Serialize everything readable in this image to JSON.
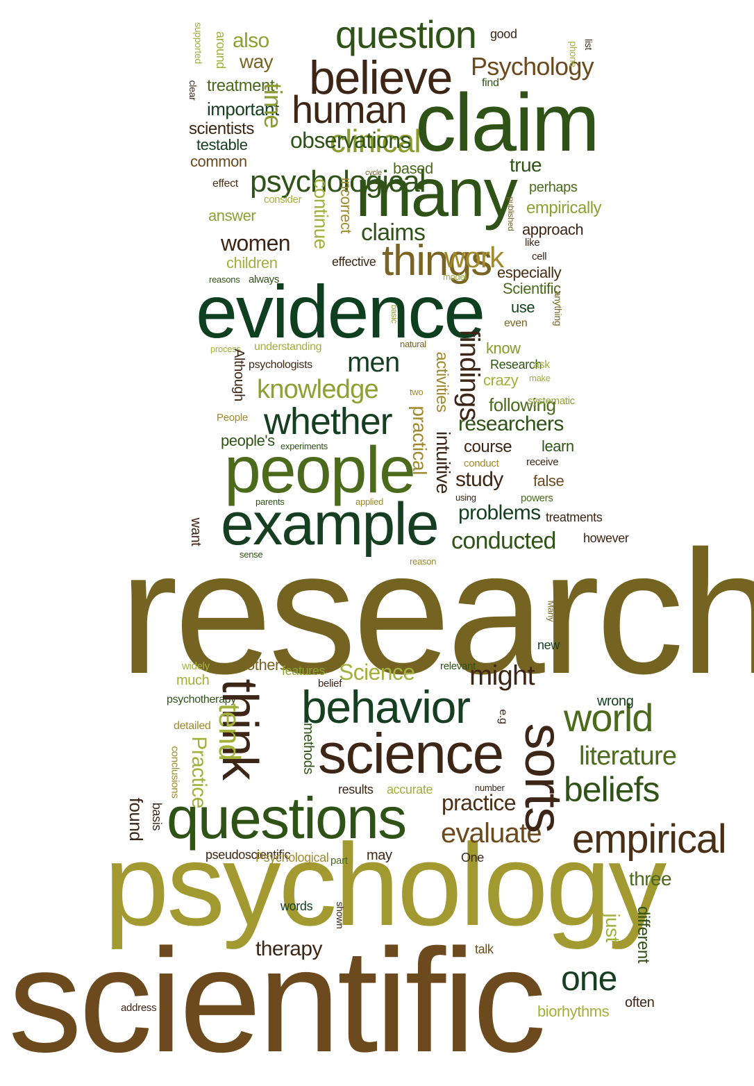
{
  "palette": {
    "dark_green": "#0f4020",
    "forest": "#2e5417",
    "olive": "#4f6a1c",
    "lime": "#8fa032",
    "mustard": "#a0922a",
    "gold": "#a8952e",
    "bronze": "#735f1f",
    "brown": "#6e4a1d",
    "dark_brown": "#3d2616"
  },
  "words": [
    {
      "text": "research",
      "color": "#746321"
    },
    {
      "text": "scientific",
      "color": "#6d4a1d"
    },
    {
      "text": "psychology",
      "color": "#a29a31"
    },
    {
      "text": "evidence",
      "color": "#0e4020"
    },
    {
      "text": "claim",
      "color": "#2f5316"
    },
    {
      "text": "many",
      "color": "#2f5316"
    },
    {
      "text": "people",
      "color": "#4b6a1c"
    },
    {
      "text": "example",
      "color": "#163f21"
    },
    {
      "text": "questions",
      "color": "#2f5316"
    },
    {
      "text": "science",
      "color": "#3d2616"
    },
    {
      "text": "believe",
      "color": "#3d2616"
    },
    {
      "text": "question",
      "color": "#2f5316"
    },
    {
      "text": "human",
      "color": "#3d2616"
    },
    {
      "text": "whether",
      "color": "#163f21"
    },
    {
      "text": "behavior",
      "color": "#163f21"
    },
    {
      "text": "world",
      "color": "#4b6a1c"
    },
    {
      "text": "beliefs",
      "color": "#2f5316"
    },
    {
      "text": "empirical",
      "color": "#4b2f14"
    },
    {
      "text": "one",
      "color": "#163f21"
    },
    {
      "text": "might",
      "color": "#3d2616"
    },
    {
      "text": "things",
      "color": "#7a6423"
    },
    {
      "text": "clinical",
      "color": "#8a9a2e"
    },
    {
      "text": "psychological",
      "color": "#2f5316"
    },
    {
      "text": "work",
      "color": "#a08a2d"
    },
    {
      "text": "claims",
      "color": "#2f5316"
    },
    {
      "text": "women",
      "color": "#3d2616"
    },
    {
      "text": "men",
      "color": "#163f21"
    },
    {
      "text": "knowledge",
      "color": "#8fa032"
    },
    {
      "text": "Psychology",
      "color": "#6d4a1d"
    },
    {
      "text": "also",
      "color": "#8fa032"
    },
    {
      "text": "way",
      "color": "#7a6423"
    },
    {
      "text": "conducted",
      "color": "#2f5316"
    },
    {
      "text": "evaluate",
      "color": "#6d4a1d"
    },
    {
      "text": "Science",
      "color": "#a2b03c"
    },
    {
      "text": "literature",
      "color": "#4b6a1c"
    },
    {
      "text": "practice",
      "color": "#4b2f14"
    },
    {
      "text": "researchers",
      "color": "#2f5316"
    },
    {
      "text": "study",
      "color": "#3d2616"
    },
    {
      "text": "problems",
      "color": "#163f21"
    },
    {
      "text": "true",
      "color": "#2f5316"
    },
    {
      "text": "therapy",
      "color": "#3d2616"
    },
    {
      "text": "three",
      "color": "#4b6a1c"
    },
    {
      "text": "observations",
      "color": "#2f5316"
    },
    {
      "text": "important",
      "color": "#163f21"
    },
    {
      "text": "treatment",
      "color": "#4b6a1c"
    },
    {
      "text": "scientists",
      "color": "#3d2616"
    },
    {
      "text": "testable",
      "color": "#163f21"
    },
    {
      "text": "common",
      "color": "#6d4a1d"
    },
    {
      "text": "answer",
      "color": "#8fa032"
    },
    {
      "text": "based",
      "color": "#4b6a1c"
    },
    {
      "text": "perhaps",
      "color": "#4b6a1c"
    },
    {
      "text": "empirically",
      "color": "#8fa032"
    },
    {
      "text": "approach",
      "color": "#3d2616"
    },
    {
      "text": "children",
      "color": "#a2b03c"
    },
    {
      "text": "especially",
      "color": "#4b2f14"
    },
    {
      "text": "Scientific",
      "color": "#4b6a1c"
    },
    {
      "text": "use",
      "color": "#163f21"
    },
    {
      "text": "know",
      "color": "#8a9a2e"
    },
    {
      "text": "crazy",
      "color": "#a2b03c"
    },
    {
      "text": "following",
      "color": "#4b6a1c"
    },
    {
      "text": "course",
      "color": "#3d2616"
    },
    {
      "text": "Research",
      "color": "#2f5316"
    },
    {
      "text": "understanding",
      "color": "#a2b03c"
    },
    {
      "text": "psychologists",
      "color": "#3d2616"
    },
    {
      "text": "people's",
      "color": "#2f5316"
    },
    {
      "text": "false",
      "color": "#6d4a1d"
    },
    {
      "text": "learn",
      "color": "#2f5316"
    },
    {
      "text": "treatments",
      "color": "#3d2616"
    },
    {
      "text": "however",
      "color": "#3d2616"
    },
    {
      "text": "others",
      "color": "#7a6423"
    },
    {
      "text": "much",
      "color": "#a2b03c"
    },
    {
      "text": "features",
      "color": "#8fa032"
    },
    {
      "text": "wrong",
      "color": "#163f21"
    },
    {
      "text": "new",
      "color": "#163f21"
    },
    {
      "text": "accurate",
      "color": "#a2b03c"
    },
    {
      "text": "results",
      "color": "#3d2616"
    },
    {
      "text": "pseudoscientific",
      "color": "#3d2616"
    },
    {
      "text": "Psychological",
      "color": "#a08a2d"
    },
    {
      "text": "may",
      "color": "#3d2616"
    },
    {
      "text": "One",
      "color": "#3d2616"
    },
    {
      "text": "words",
      "color": "#163f21"
    },
    {
      "text": "talk",
      "color": "#6d4a1d"
    },
    {
      "text": "biorhythms",
      "color": "#a2b03c"
    },
    {
      "text": "often",
      "color": "#3d2616"
    },
    {
      "text": "good",
      "color": "#3d2616"
    },
    {
      "text": "find",
      "color": "#2f5316"
    },
    {
      "text": "effect",
      "color": "#4b2f14"
    },
    {
      "text": "consider",
      "color": "#a2b03c"
    },
    {
      "text": "like",
      "color": "#3d2616"
    },
    {
      "text": "cell",
      "color": "#3d2616"
    },
    {
      "text": "even",
      "color": "#7a6423"
    },
    {
      "text": "effective",
      "color": "#3d2616"
    },
    {
      "text": "model",
      "color": "#a2b03c"
    },
    {
      "text": "reasons",
      "color": "#2f5316"
    },
    {
      "text": "always",
      "color": "#2f5316"
    },
    {
      "text": "natural",
      "color": "#7a6423"
    },
    {
      "text": "process",
      "color": "#a2b03c"
    },
    {
      "text": "ask",
      "color": "#a2b03c"
    },
    {
      "text": "make",
      "color": "#a2b03c"
    },
    {
      "text": "systematic",
      "color": "#8fa032"
    },
    {
      "text": "two",
      "color": "#a08a2d"
    },
    {
      "text": "People",
      "color": "#a08a2d"
    },
    {
      "text": "experiments",
      "color": "#2f5316"
    },
    {
      "text": "conduct",
      "color": "#a08a2d"
    },
    {
      "text": "receive",
      "color": "#3d2616"
    },
    {
      "text": "parents",
      "color": "#2f5316"
    },
    {
      "text": "applied",
      "color": "#a08a2d"
    },
    {
      "text": "using",
      "color": "#3d2616"
    },
    {
      "text": "powers",
      "color": "#4b6a1c"
    },
    {
      "text": "sense",
      "color": "#2f5316"
    },
    {
      "text": "reason",
      "color": "#a08a2d"
    },
    {
      "text": "widely",
      "color": "#a2b03c"
    },
    {
      "text": "psychotherapy",
      "color": "#2f5316"
    },
    {
      "text": "relevant",
      "color": "#2f5316"
    },
    {
      "text": "belief",
      "color": "#3d2616"
    },
    {
      "text": "detailed",
      "color": "#a08a2d"
    },
    {
      "text": "number",
      "color": "#3d2616"
    },
    {
      "text": "part",
      "color": "#4b6a1c"
    },
    {
      "text": "address",
      "color": "#3d2616"
    },
    {
      "text": "think",
      "color": "#3d2616"
    },
    {
      "text": "sorts",
      "color": "#3d2616"
    },
    {
      "text": "tend",
      "color": "#a2b03c"
    },
    {
      "text": "time",
      "color": "#8a9a2e"
    },
    {
      "text": "findings",
      "color": "#3d2616"
    },
    {
      "text": "Practice",
      "color": "#a2b03c"
    },
    {
      "text": "continue",
      "color": "#a2b03c"
    },
    {
      "text": "intuitive",
      "color": "#3d2616"
    },
    {
      "text": "just",
      "color": "#a2b03c"
    },
    {
      "text": "practical",
      "color": "#a08a2d"
    },
    {
      "text": "activities",
      "color": "#a08a2d"
    },
    {
      "text": "incorrect",
      "color": "#a08a2d"
    },
    {
      "text": "different",
      "color": "#2f5316"
    },
    {
      "text": "found",
      "color": "#3d2616"
    },
    {
      "text": "basis",
      "color": "#3d2616"
    },
    {
      "text": "conclusions",
      "color": "#a08a2d"
    },
    {
      "text": "methods",
      "color": "#2f5316"
    },
    {
      "text": "e.g",
      "color": "#3d2616"
    },
    {
      "text": "want",
      "color": "#3d2616"
    },
    {
      "text": "Although",
      "color": "#3d2616"
    },
    {
      "text": "around",
      "color": "#a2b03c"
    },
    {
      "text": "supported",
      "color": "#a2b03c"
    },
    {
      "text": "clear",
      "color": "#3d2616"
    },
    {
      "text": "list",
      "color": "#3d2616"
    },
    {
      "text": "phone",
      "color": "#a2b03c"
    },
    {
      "text": "cycle",
      "color": "#7a6423"
    },
    {
      "text": "published",
      "color": "#7a6423"
    },
    {
      "text": "anything",
      "color": "#7a6423"
    },
    {
      "text": "basic",
      "color": "#8fa032"
    },
    {
      "text": "Many",
      "color": "#7a6423"
    },
    {
      "text": "shown",
      "color": "#3d2616"
    }
  ]
}
